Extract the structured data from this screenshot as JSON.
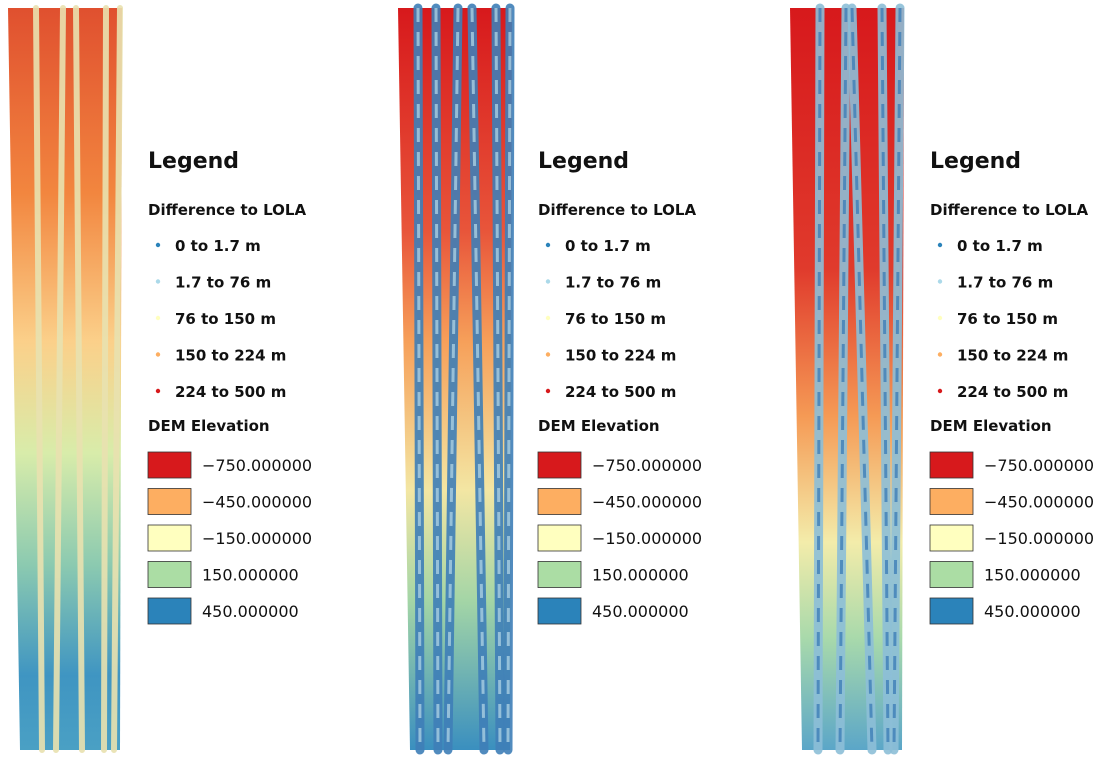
{
  "panels": [
    {
      "legend": {
        "title": "Legend",
        "groups": [
          {
            "title": "Difference to LOLA",
            "items": [
              "0 to 1.7 m",
              "1.7 to 76 m",
              "76 to 150 m",
              "150 to 224 m",
              "224 to 500 m"
            ]
          },
          {
            "title": "DEM Elevation",
            "items": [
              "−750.000000",
              "−450.000000",
              "−150.000000",
              "150.000000",
              "450.000000"
            ]
          }
        ]
      }
    },
    {
      "legend": {
        "title": "Legend",
        "groups": [
          {
            "title": "Difference to LOLA",
            "items": [
              "0 to 1.7 m",
              "1.7 to 76 m",
              "76 to 150 m",
              "150 to 224 m",
              "224 to 500 m"
            ]
          },
          {
            "title": "DEM Elevation",
            "items": [
              "−750.000000",
              "−450.000000",
              "−150.000000",
              "150.000000",
              "450.000000"
            ]
          }
        ]
      }
    },
    {
      "legend": {
        "title": "Legend",
        "groups": [
          {
            "title": "Difference to LOLA",
            "items": [
              "0 to 1.7 m",
              "1.7 to 76 m",
              "76 to 150 m",
              "150 to 224 m",
              "224 to 500 m"
            ]
          },
          {
            "title": "DEM Elevation",
            "items": [
              "−750.000000",
              "−450.000000",
              "−150.000000",
              "150.000000",
              "450.000000"
            ]
          }
        ]
      }
    }
  ]
}
